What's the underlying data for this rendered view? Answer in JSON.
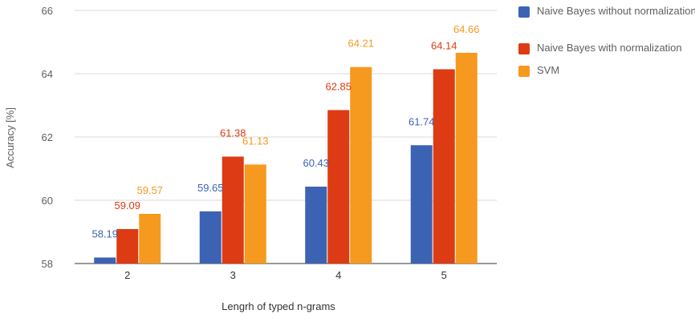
{
  "chart_data": {
    "type": "bar",
    "title": "",
    "xlabel": "Lengrh of typed n-grams",
    "ylabel": "Accuracy [%]",
    "categories": [
      "2",
      "3",
      "4",
      "5"
    ],
    "ylim": [
      58,
      66
    ],
    "yticks": [
      "58",
      "60",
      "62",
      "64",
      "66"
    ],
    "grid": true,
    "legend_position": "right",
    "series": [
      {
        "name": "Naive Bayes without normalization",
        "color": "#3c63b3",
        "values": [
          58.19,
          59.65,
          60.43,
          61.74
        ],
        "labels": [
          "58.19",
          "59.65",
          "60.43",
          "61.74"
        ]
      },
      {
        "name": "Naive Bayes with normalization",
        "color": "#dd3b13",
        "values": [
          59.09,
          61.38,
          62.85,
          64.14
        ],
        "labels": [
          "59.09",
          "61.38",
          "62.85",
          "64.14"
        ]
      },
      {
        "name": "SVM",
        "color": "#f6991f",
        "values": [
          59.57,
          61.13,
          64.21,
          64.66
        ],
        "labels": [
          "59.57",
          "61.13",
          "64.21",
          "64.66"
        ]
      }
    ]
  }
}
